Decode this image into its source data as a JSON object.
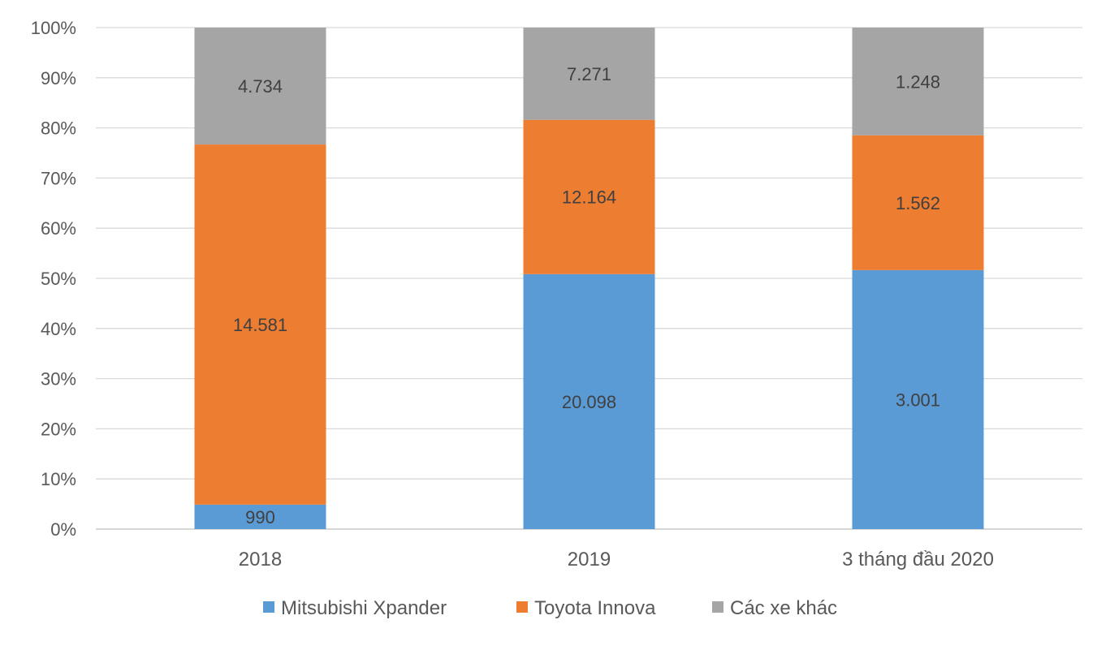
{
  "chart_data": {
    "type": "bar",
    "stacked": "percent",
    "categories": [
      "2018",
      "2019",
      "3 tháng đầu 2020"
    ],
    "series": [
      {
        "name": "Mitsubishi Xpander",
        "color": "#5B9BD5",
        "values": [
          990,
          20098,
          3001
        ],
        "labels": [
          "990",
          "20.098",
          "3.001"
        ]
      },
      {
        "name": "Toyota Innova",
        "color": "#ED7D31",
        "values": [
          14581,
          12164,
          1562
        ],
        "labels": [
          "14.581",
          "12.164",
          "1.562"
        ]
      },
      {
        "name": "Các xe khác",
        "color": "#A5A5A5",
        "values": [
          4734,
          7271,
          1248
        ],
        "labels": [
          "4.734",
          "7.271",
          "1.248"
        ]
      }
    ],
    "yticks": [
      "0%",
      "10%",
      "20%",
      "30%",
      "40%",
      "50%",
      "60%",
      "70%",
      "80%",
      "90%",
      "100%"
    ],
    "ylim": [
      0,
      100
    ],
    "grid": true,
    "legend": "bottom",
    "title": "",
    "xlabel": "",
    "ylabel": ""
  }
}
